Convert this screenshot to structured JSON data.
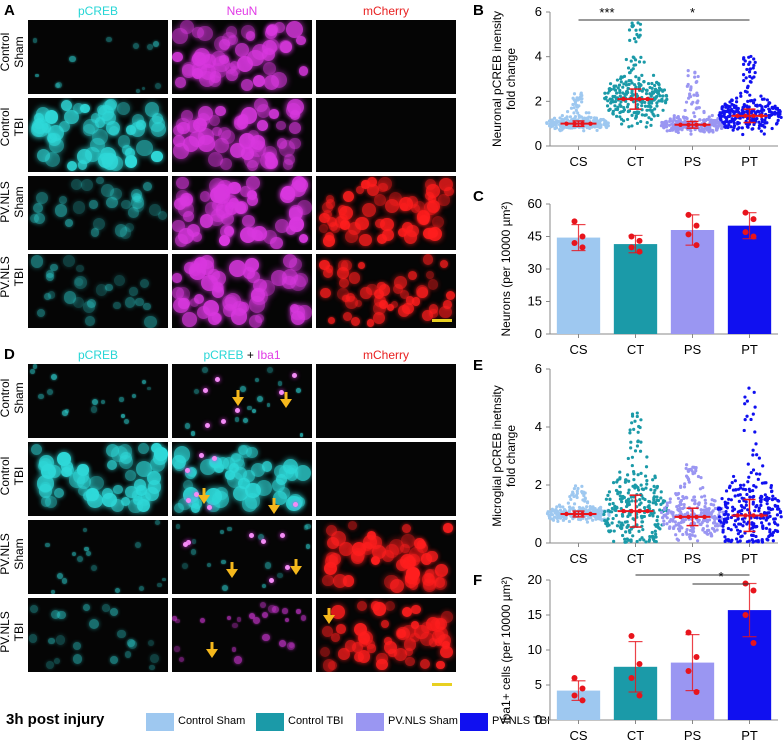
{
  "panels": {
    "A": "A",
    "B": "B",
    "C": "C",
    "D": "D",
    "E": "E",
    "F": "F"
  },
  "top_channels": [
    "pCREB",
    "NeuN",
    "mCherry"
  ],
  "top_channel_colors": [
    "#27d6d6",
    "#e13be6",
    "#e82020"
  ],
  "bottom_channels": {
    "left": "pCREB",
    "mid_a": "pCREB",
    "mid_plus": " + ",
    "mid_b": "Iba1",
    "right": "mCherry"
  },
  "row_labels": [
    {
      "line1": "Control",
      "line2": "Sham"
    },
    {
      "line1": "Control",
      "line2": "TBI"
    },
    {
      "line1": "PV.NLS",
      "line2": "Sham"
    },
    {
      "line1": "PV.NLS",
      "line2": "TBI"
    }
  ],
  "footer": {
    "title": "3h post injury",
    "legend": [
      {
        "label": "Control Sham",
        "color": "#9ec8f0"
      },
      {
        "label": "Control TBI",
        "color": "#1b9aa8"
      },
      {
        "label": "PV.NLS Sham",
        "color": "#9a96f2"
      },
      {
        "label": "PV.NLS TBI",
        "color": "#1010f0"
      }
    ]
  },
  "chart_data": [
    {
      "panel": "B",
      "type": "scatter",
      "ylabel_line1": "Neuronal pCREB inensity",
      "ylabel_line2": "fold change",
      "categories": [
        "CS",
        "CT",
        "PS",
        "PT"
      ],
      "ylim": [
        0,
        6
      ],
      "yticks": [
        0,
        2,
        4,
        6
      ],
      "means": [
        1.0,
        2.1,
        0.95,
        1.35
      ],
      "sd": [
        0.12,
        0.45,
        0.15,
        0.3
      ],
      "spread_max": [
        2.4,
        5.6,
        3.5,
        4.1
      ],
      "point_colors": [
        "#9ec8f0",
        "#1b9aa8",
        "#9a96f2",
        "#1010f0"
      ],
      "significance": [
        {
          "from": "CS",
          "to": "CT",
          "label": "***"
        },
        {
          "from": "CT",
          "to": "PT",
          "label": "*"
        }
      ]
    },
    {
      "panel": "C",
      "type": "bar",
      "ylabel": "Neurons (per 10000 µm²)",
      "categories": [
        "CS",
        "CT",
        "PS",
        "PT"
      ],
      "values": [
        44.5,
        41.5,
        48.0,
        50.0
      ],
      "errors": [
        6.0,
        4.0,
        7.0,
        6.0
      ],
      "points": [
        [
          52,
          45,
          42,
          40
        ],
        [
          45,
          43,
          40,
          38
        ],
        [
          55,
          50,
          46,
          41
        ],
        [
          56,
          53,
          47,
          45
        ]
      ],
      "ylim": [
        0,
        60
      ],
      "yticks": [
        0,
        15,
        30,
        45,
        60
      ],
      "colors": [
        "#9ec8f0",
        "#1b9aa8",
        "#9a96f2",
        "#1010f0"
      ]
    },
    {
      "panel": "E",
      "type": "scatter",
      "ylabel_line1": "Microglial pCREB inetnsity",
      "ylabel_line2": "fold change",
      "categories": [
        "CS",
        "CT",
        "PS",
        "PT"
      ],
      "ylim": [
        0,
        6
      ],
      "yticks": [
        0,
        2,
        4,
        6
      ],
      "means": [
        1.0,
        1.1,
        0.9,
        0.95
      ],
      "sd": [
        0.1,
        0.55,
        0.3,
        0.55
      ],
      "spread_max": [
        2.0,
        4.5,
        2.7,
        5.4
      ],
      "point_colors": [
        "#9ec8f0",
        "#1b9aa8",
        "#9a96f2",
        "#1010f0"
      ]
    },
    {
      "panel": "F",
      "type": "bar",
      "ylabel": "Iba1+ cells (per 10000 µm²)",
      "categories": [
        "CS",
        "CT",
        "PS",
        "PT"
      ],
      "values": [
        4.2,
        7.6,
        8.2,
        15.7
      ],
      "errors": [
        1.4,
        3.6,
        4.0,
        3.8
      ],
      "points": [
        [
          6.0,
          4.5,
          3.5,
          2.8
        ],
        [
          12.0,
          8.0,
          6.0,
          3.5
        ],
        [
          12.5,
          9.0,
          7.0,
          4.0
        ],
        [
          19.5,
          18.5,
          15.0,
          11.0
        ]
      ],
      "ylim": [
        0,
        20
      ],
      "yticks": [
        0,
        5,
        10,
        15,
        20
      ],
      "colors": [
        "#9ec8f0",
        "#1b9aa8",
        "#9a96f2",
        "#1010f0"
      ],
      "significance": [
        {
          "from": "CT",
          "to": "PT",
          "label": "*"
        },
        {
          "from": "PS",
          "to": "PT",
          "label": "*"
        }
      ]
    }
  ]
}
